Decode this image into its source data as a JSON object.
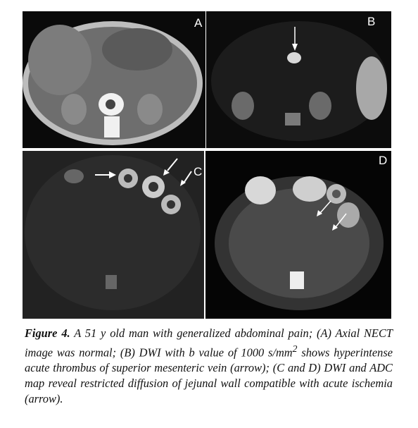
{
  "figure": {
    "panels": [
      {
        "label": "A"
      },
      {
        "label": "B"
      },
      {
        "label": "C"
      },
      {
        "label": "D"
      }
    ],
    "caption": {
      "label": "Figure 4.",
      "text_before": "A 51 y old man with generalized abdominal pain; (A) Axial NECT image was normal; (B) DWI with b value of 1000 s/mm",
      "superscript": "2",
      "text_after": "shows hyperintense acute thrombus of superior mesenteric vein (arrow); (C and D) DWI and ADC map reveal restricted diffusion of jejunal wall compatible with acute ischemia (arrow)."
    }
  }
}
